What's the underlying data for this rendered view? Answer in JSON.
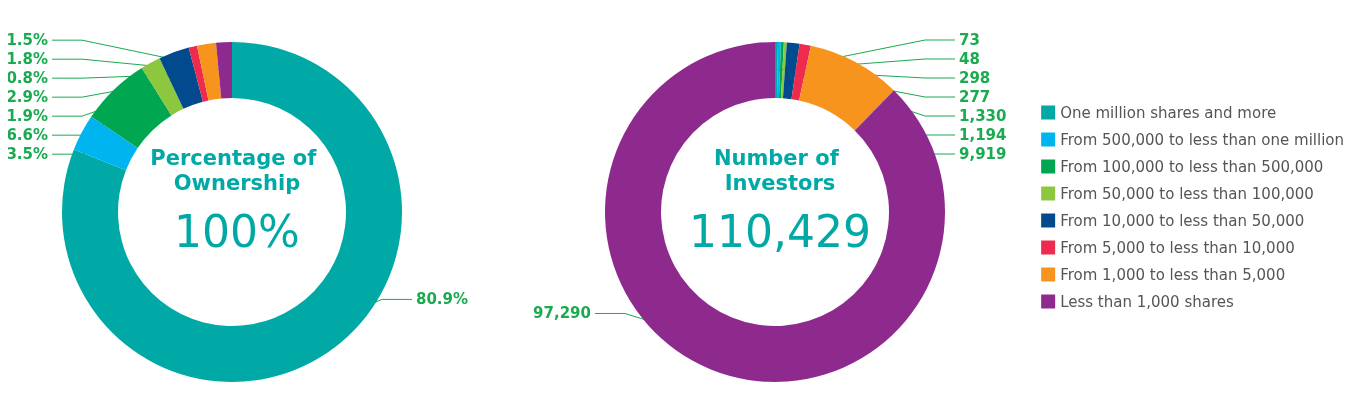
{
  "chart_data": [
    {
      "type": "donut",
      "title": "Percentage of Ownership",
      "subtitle": "100%",
      "categories": [
        null,
        null,
        null,
        null,
        null,
        null,
        null,
        null
      ],
      "values": [
        80.9,
        3.5,
        6.6,
        1.9,
        2.9,
        0.8,
        1.8,
        1.5
      ],
      "value_labels": [
        "80.9%",
        "3.5%",
        "6.6%",
        "1.9%",
        "2.9%",
        "0.8%",
        "1.8%",
        "1.5%"
      ],
      "colors": [
        "#00a9a5",
        "#00b5ef",
        "#00a650",
        "#8dc63f",
        "#004a8d",
        "#ee2a4f",
        "#f7941d",
        "#8e2a8e"
      ],
      "legend": false
    },
    {
      "type": "donut",
      "title": "Number of Investors",
      "subtitle": "110,429",
      "categories": [
        "One million shares and more",
        "From 500,000 to less than one million",
        "From 100,000 to less than 500,000",
        "From 50,000 to less than 100,000",
        "From 10,000 to less than 50,000",
        "From 5,000 to less than 10,000",
        "From 1,000 to less than 5,000",
        "Less than 1,000 shares"
      ],
      "values": [
        73,
        48,
        298,
        277,
        1330,
        1194,
        9919,
        97290
      ],
      "value_labels": [
        "73",
        "48",
        "298",
        "277",
        "1,330",
        "1,194",
        "9,919",
        "97,290"
      ],
      "colors": [
        "#00a9a5",
        "#00b5ef",
        "#00a650",
        "#8dc63f",
        "#004a8d",
        "#ee2a4f",
        "#f7941d",
        "#8e2a8e"
      ],
      "legend": "right"
    }
  ]
}
